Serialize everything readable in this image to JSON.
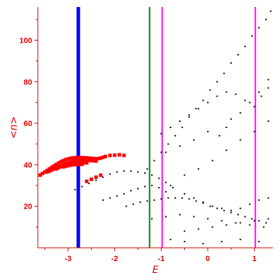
{
  "chart_data": {
    "type": "scatter",
    "xlabel": "E",
    "ylabel": "<n>",
    "xlim": [
      -3.65,
      1.4
    ],
    "ylim": [
      0,
      116
    ],
    "xticks": [
      -3,
      -2,
      -1,
      0,
      1
    ],
    "xtick_labels": [
      "-3",
      "-2",
      "-1",
      "0",
      "1"
    ],
    "yticks": [
      20,
      40,
      60,
      80,
      100
    ],
    "ytick_labels": [
      "20",
      "40",
      "60",
      "80",
      "100"
    ],
    "grid": false,
    "colors": {
      "axes": "#e00000",
      "black_points": "#000000",
      "red_points": "#ff0000",
      "blue_line": "#0000ff",
      "green_line": "#008000",
      "magenta_line": "#ff00ff"
    },
    "vertical_lines": [
      {
        "x": -2.78,
        "color": "#0000ff",
        "width": "thick"
      },
      {
        "x": -1.25,
        "color": "#008000",
        "width": "thin"
      },
      {
        "x": -0.98,
        "color": "#ff00ff",
        "width": "thin"
      },
      {
        "x": 1.02,
        "color": "#ff00ff",
        "width": "thin"
      }
    ],
    "series": [
      {
        "color": "#ff0000",
        "marker": "square",
        "x": [
          -3.6,
          -3.55,
          -3.5,
          -3.45,
          -3.4,
          -3.35,
          -3.3,
          -3.25,
          -3.2,
          -3.15,
          -3.1,
          -3.05,
          -3.0,
          -2.95,
          -2.9,
          -2.85,
          -2.8,
          -2.75,
          -2.7,
          -2.65,
          -2.6,
          -2.55,
          -2.5,
          -2.45,
          -2.4,
          -2.35,
          -2.3,
          -2.25,
          -2.2,
          -2.1,
          -2.0,
          -1.9,
          -1.8,
          -3.45,
          -3.4,
          -3.35,
          -3.3,
          -3.25,
          -3.2,
          -3.15,
          -3.1,
          -3.05,
          -3.0,
          -2.95,
          -2.9,
          -2.85,
          -2.8,
          -2.75,
          -2.7,
          -2.65,
          -2.6,
          -2.55,
          -2.5,
          -2.45,
          -2.4,
          -3.25,
          -3.2,
          -3.15,
          -3.1,
          -3.05,
          -3.0,
          -2.95,
          -2.9,
          -2.85,
          -2.8,
          -2.75,
          -2.7,
          -2.65,
          -2.6,
          -3.1,
          -3.05,
          -3.0,
          -2.95,
          -2.9,
          -2.85,
          -2.8,
          -2.75,
          -2.7,
          -2.6,
          -2.5,
          -2.4,
          -2.3
        ],
        "y": [
          35.0,
          35.8,
          36.5,
          37.3,
          38.0,
          38.8,
          39.5,
          40.2,
          40.9,
          41.5,
          42.0,
          42.5,
          42.8,
          43.1,
          43.3,
          43.4,
          43.5,
          43.5,
          43.4,
          43.4,
          43.3,
          43.2,
          43.1,
          43.0,
          42.9,
          43.0,
          43.2,
          43.6,
          44.0,
          44.5,
          44.6,
          44.8,
          44.5,
          36.5,
          37.0,
          37.5,
          38.0,
          38.6,
          39.2,
          39.7,
          40.2,
          40.6,
          41.0,
          41.3,
          41.6,
          41.8,
          42.0,
          42.1,
          42.2,
          42.2,
          42.2,
          42.1,
          42.0,
          41.9,
          41.8,
          38.0,
          38.6,
          39.1,
          39.5,
          39.9,
          40.2,
          40.5,
          40.7,
          40.9,
          41.0,
          41.1,
          41.1,
          41.0,
          40.9,
          39.0,
          39.3,
          39.6,
          39.8,
          40.0,
          40.1,
          40.2,
          40.2,
          40.2,
          32.0,
          33.0,
          34.0,
          35.0
        ]
      },
      {
        "color": "#000000",
        "marker": "dot",
        "x": [
          -1.3,
          -1.15,
          -1.0,
          -0.85,
          -0.7,
          -0.55,
          -0.4,
          -0.25,
          -0.1,
          0.05,
          0.2,
          0.35,
          0.5,
          0.65,
          0.8,
          0.95,
          1.1,
          1.25,
          1.35,
          -1.0,
          -0.8,
          -0.6,
          -0.4,
          -0.2,
          0.0,
          0.2,
          0.4,
          0.6,
          0.8,
          1.0,
          1.15,
          1.3,
          -0.9,
          -0.6,
          -0.3,
          0.0,
          0.25,
          0.4,
          0.5,
          0.7,
          0.9,
          1.1,
          1.3,
          -0.8,
          -0.5,
          -0.2,
          0.1,
          0.4,
          0.7,
          1.0,
          1.3,
          -2.85,
          -2.7,
          -2.55,
          -2.4,
          -2.25,
          -2.1,
          -1.95,
          -1.8,
          -1.65,
          -1.5,
          -1.35,
          -1.2,
          -1.05,
          -0.9,
          -0.75,
          -2.25,
          -2.1,
          -1.95,
          -1.8,
          -1.65,
          -1.5,
          -1.35,
          -1.2,
          -1.05,
          -0.9,
          -1.75,
          -1.6,
          -1.45,
          -1.3,
          -1.15,
          -1.0,
          -0.85,
          -0.7,
          -0.55,
          -0.4,
          -0.25,
          -0.1,
          0.05,
          0.2,
          0.35,
          0.5,
          0.65,
          0.8,
          0.95,
          1.1,
          1.25,
          -0.5,
          -0.3,
          -0.1,
          0.1,
          0.3,
          0.5,
          0.7,
          0.9,
          1.1,
          1.3,
          -1.2,
          -0.9,
          -0.6,
          -0.3,
          0.0,
          0.3,
          0.6,
          0.9,
          1.2,
          -0.5,
          -0.2,
          0.1,
          0.4,
          0.7,
          1.0,
          1.3,
          -0.8,
          -0.5,
          -0.1,
          0.3,
          0.7,
          1.1
        ],
        "y": [
          38,
          42,
          46,
          50,
          54,
          58,
          63,
          67,
          71,
          76,
          80,
          84,
          89,
          93,
          97,
          102,
          106,
          110,
          114,
          55,
          58,
          61,
          64,
          67,
          70,
          73,
          75,
          74,
          71,
          68,
          73,
          77,
          46,
          49,
          52,
          56,
          54,
          58,
          62,
          65,
          70,
          75,
          81,
          30,
          35,
          38,
          42,
          47,
          52,
          56,
          61,
          28,
          29.5,
          31,
          32.5,
          34,
          35.5,
          36.5,
          37,
          37,
          36.5,
          36,
          35,
          33.5,
          31.5,
          29,
          23,
          24,
          25,
          26,
          27.5,
          28.5,
          29.5,
          30,
          29,
          27,
          20,
          21,
          22,
          22.5,
          23,
          23.5,
          24,
          24,
          24,
          23.5,
          22.5,
          21.5,
          20,
          19,
          18,
          17,
          16,
          15,
          14,
          13,
          12,
          26,
          24,
          22,
          20,
          19,
          18,
          19,
          21,
          23,
          24,
          14,
          15,
          16,
          15,
          14,
          13,
          12,
          11,
          10,
          8,
          9,
          10,
          11,
          12,
          13,
          14,
          4,
          3,
          2,
          3,
          4,
          3
        ]
      }
    ]
  }
}
